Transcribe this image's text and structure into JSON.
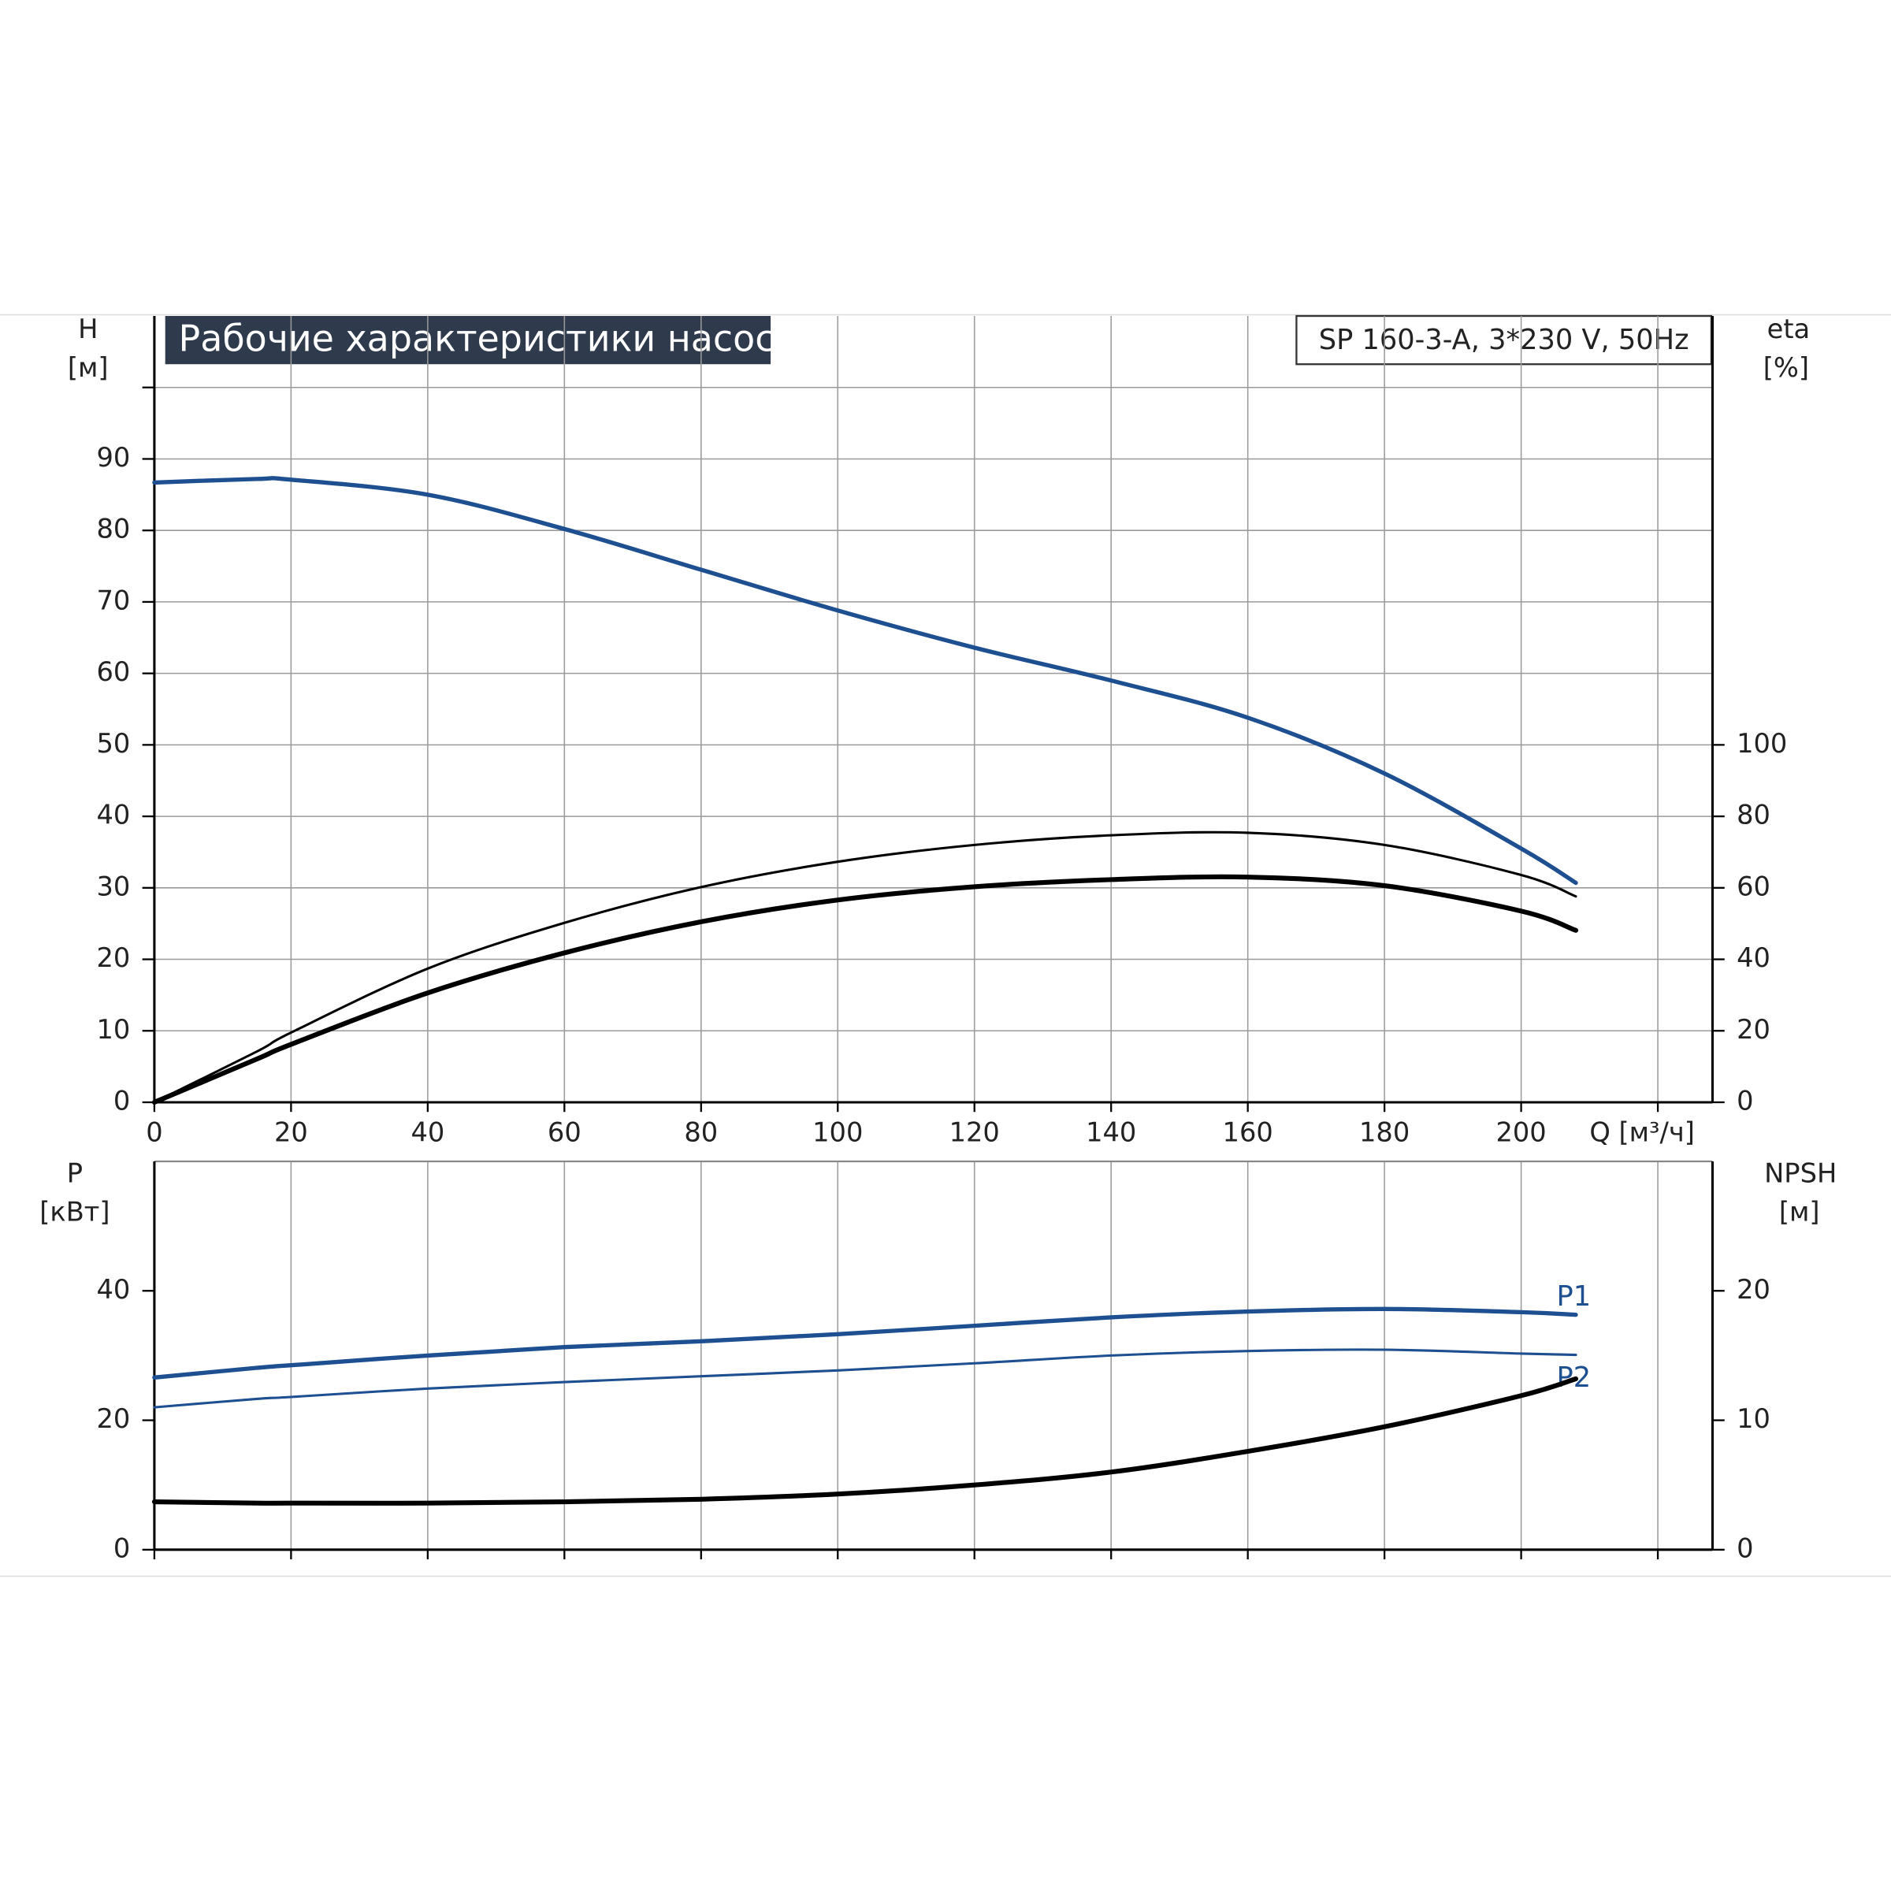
{
  "chart_data": [
    {
      "type": "line",
      "title": "Рабочие характеристики насоса",
      "subtitle": "SP 160-3-A, 3*230 V, 50Hz",
      "xlabel": "Q [м³/ч]",
      "ylabel": "H",
      "ylabel_unit": "[м]",
      "y2label": "eta",
      "y2label_unit": "[%]",
      "grid": true,
      "x": [
        0,
        15,
        20,
        40,
        60,
        80,
        100,
        120,
        140,
        160,
        180,
        200,
        208
      ],
      "xlim": [
        0,
        228
      ],
      "xticks": [
        0,
        20,
        40,
        60,
        80,
        100,
        120,
        140,
        160,
        180,
        200,
        {
          "value": 220,
          "label": null
        }
      ],
      "ylim": [
        0,
        110
      ],
      "yticks": [
        0,
        10,
        20,
        30,
        40,
        50,
        60,
        70,
        80,
        90,
        {
          "value": 100,
          "label": null
        }
      ],
      "y2lim": [
        0,
        220
      ],
      "y2ticks": [
        0,
        20,
        40,
        60,
        80,
        100
      ],
      "series": [
        {
          "color": "#1d4f91",
          "linewidth": 3.5,
          "values": [
            86.7,
            87.2,
            87.1,
            85,
            80.2,
            74.5,
            68.8,
            63.6,
            59,
            53.8,
            46,
            35.5,
            30.7
          ]
        },
        {
          "color": "#000000",
          "linewidth": 2,
          "axis": "y2",
          "values": [
            0,
            14.2,
            19.5,
            37.4,
            50.2,
            60.2,
            67.3,
            72,
            74.7,
            75.4,
            72,
            63.6,
            57.6
          ]
        },
        {
          "color": "#000000",
          "linewidth": 4,
          "axis": "y2",
          "values": [
            0,
            12.1,
            16.2,
            30.6,
            41.8,
            50.5,
            56.6,
            60.3,
            62.3,
            63,
            60.6,
            53.5,
            48.1
          ]
        }
      ]
    },
    {
      "type": "line",
      "ylabel": "P",
      "ylabel_unit": "[кВт]",
      "y2label": "NPSH",
      "y2label_unit": "[м]",
      "grid": true,
      "x": [
        0,
        15,
        20,
        40,
        60,
        80,
        100,
        120,
        140,
        160,
        180,
        200,
        208
      ],
      "xlim": [
        0,
        228
      ],
      "ylim": [
        0,
        60
      ],
      "yticks": [
        0,
        20,
        40
      ],
      "y2lim": [
        0,
        30
      ],
      "y2ticks": [
        0,
        10,
        20
      ],
      "series": [
        {
          "name": "P1",
          "color": "#1d4f91",
          "linewidth": 3.5,
          "values": [
            26.6,
            28.1,
            28.5,
            30,
            31.3,
            32.2,
            33.3,
            34.6,
            35.9,
            36.8,
            37.2,
            36.7,
            36.3
          ]
        },
        {
          "name": "P2",
          "color": "#1d4f91",
          "linewidth": 2,
          "values": [
            22,
            23.3,
            23.6,
            24.9,
            25.9,
            26.8,
            27.7,
            28.8,
            30,
            30.7,
            30.9,
            30.3,
            30.1
          ]
        },
        {
          "color": "#000000",
          "linewidth": 4,
          "axis": "y2",
          "values": [
            3.7,
            3.6,
            3.6,
            3.6,
            3.7,
            3.9,
            4.3,
            5.0,
            6.0,
            7.6,
            9.5,
            11.9,
            13.2
          ]
        }
      ]
    }
  ]
}
